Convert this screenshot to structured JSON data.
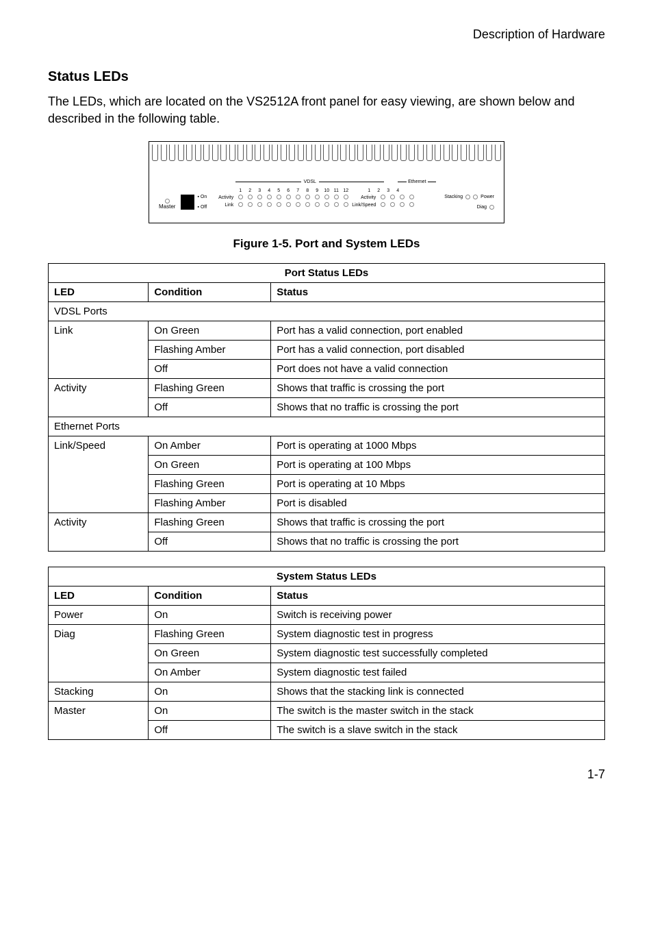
{
  "header": {
    "page_section": "Description of Hardware"
  },
  "section": {
    "title": "Status LEDs",
    "intro": "The LEDs, which are located on the VS2512A front panel for easy viewing, are shown below and described in the following table."
  },
  "figure": {
    "caption": "Figure 1-5.  Port and System LEDs",
    "panel": {
      "vent_count": 41,
      "vdsl_label": "VDSL",
      "ethernet_label": "Ethernet",
      "vdsl_numbers": [
        "1",
        "2",
        "3",
        "4",
        "5",
        "6",
        "7",
        "8",
        "9",
        "10",
        "11",
        "12"
      ],
      "eth_numbers": [
        "1",
        "2",
        "3",
        "4"
      ],
      "activity_label": "Activity",
      "link_label": "Link",
      "linkspeed_label": "Link/Speed",
      "master_label": "Master",
      "on_label": "On",
      "off_label": "Off",
      "stacking_label": "Stacking",
      "power_label": "Power",
      "diag_label": "Diag"
    }
  },
  "port_table": {
    "title": "Port Status LEDs",
    "headers": {
      "led": "LED",
      "condition": "Condition",
      "status": "Status"
    },
    "section1": "VDSL Ports",
    "rows1": [
      {
        "led": "Link",
        "condition": "On Green",
        "status": "Port has a valid connection, port enabled"
      },
      {
        "led": "",
        "condition": "Flashing Amber",
        "status": "Port has a valid connection, port disabled"
      },
      {
        "led": "",
        "condition": "Off",
        "status": "Port does not have a valid connection"
      },
      {
        "led": "Activity",
        "condition": "Flashing Green",
        "status": "Shows that traffic is crossing the port"
      },
      {
        "led": "",
        "condition": "Off",
        "status": "Shows that no traffic is crossing the port"
      }
    ],
    "section2": "Ethernet Ports",
    "rows2": [
      {
        "led": "Link/Speed",
        "condition": "On Amber",
        "status": "Port is operating at 1000 Mbps"
      },
      {
        "led": "",
        "condition": "On Green",
        "status": "Port is operating at 100 Mbps"
      },
      {
        "led": "",
        "condition": "Flashing Green",
        "status": "Port is operating at 10 Mbps"
      },
      {
        "led": "",
        "condition": "Flashing Amber",
        "status": "Port is disabled"
      },
      {
        "led": "Activity",
        "condition": "Flashing Green",
        "status": "Shows that traffic is crossing the port"
      },
      {
        "led": "",
        "condition": "Off",
        "status": "Shows that no traffic is crossing the port"
      }
    ],
    "rowspans1": [
      3,
      2
    ],
    "rowspans2": [
      4,
      2
    ]
  },
  "system_table": {
    "title": "System Status LEDs",
    "headers": {
      "led": "LED",
      "condition": "Condition",
      "status": "Status"
    },
    "rows": [
      {
        "led": "Power",
        "condition": "On",
        "status": "Switch is receiving power"
      },
      {
        "led": "Diag",
        "condition": "Flashing Green",
        "status": "System diagnostic test in progress"
      },
      {
        "led": "",
        "condition": "On Green",
        "status": "System diagnostic test successfully completed"
      },
      {
        "led": "",
        "condition": "On Amber",
        "status": "System diagnostic test failed"
      },
      {
        "led": "Stacking",
        "condition": "On",
        "status": "Shows that the stacking link is connected"
      },
      {
        "led": "Master",
        "condition": "On",
        "status": "The switch is the master switch in the stack"
      },
      {
        "led": "",
        "condition": "Off",
        "status": "The switch is a slave switch in the stack"
      }
    ],
    "rowspans": [
      1,
      3,
      1,
      2
    ]
  },
  "footer": {
    "page_number": "1-7"
  },
  "colors": {
    "text": "#000000",
    "border": "#000000",
    "led_outline": "#888888",
    "background": "#ffffff"
  }
}
